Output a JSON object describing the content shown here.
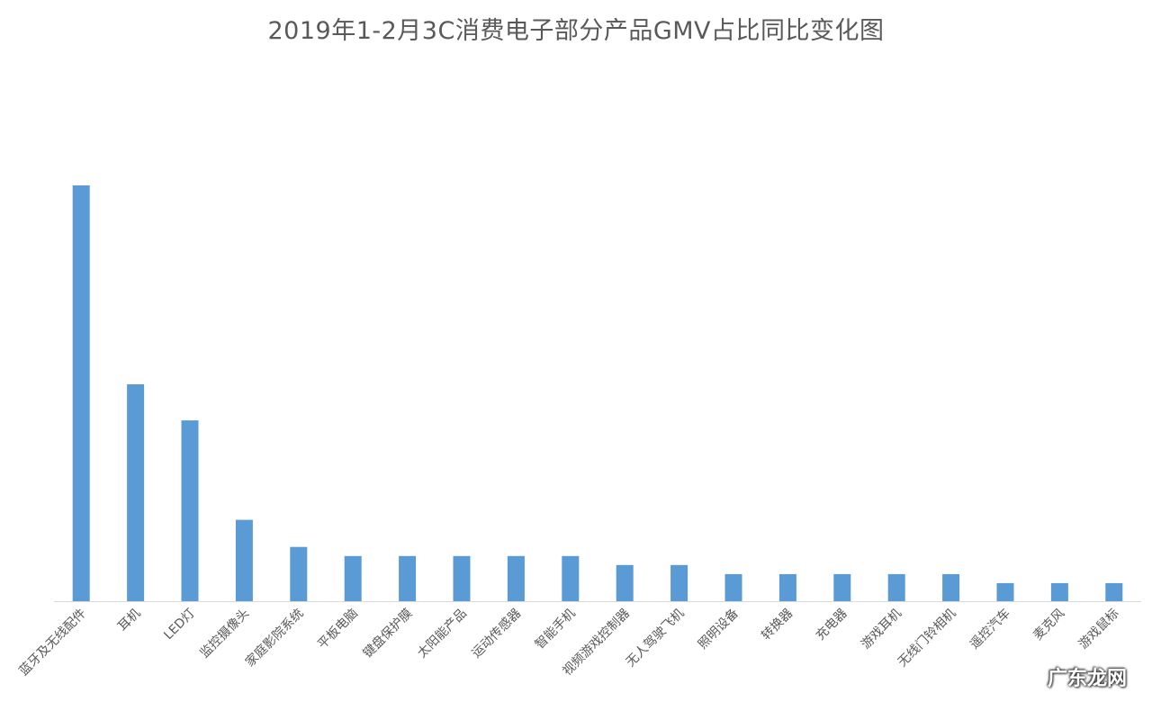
{
  "chart_data": {
    "type": "bar",
    "title": "2019年1-2月3C消费电子部分产品GMV占比同比变化图",
    "xlabel": "",
    "ylabel": "",
    "ylim": [
      0,
      46
    ],
    "grid": false,
    "legend": "none",
    "bar_color": "#5b9bd5",
    "categories": [
      "蓝牙及无线配件",
      "耳机",
      "LED灯",
      "监控摄像头",
      "家庭影院系统",
      "平板电脑",
      "键盘保护膜",
      "太阳能产品",
      "运动传感器",
      "智能手机",
      "视频游戏控制器",
      "无人驾驶飞机",
      "照明设备",
      "转换器",
      "充电器",
      "游戏耳机",
      "无线门铃相机",
      "遥控汽车",
      "麦克风",
      "游戏鼠标"
    ],
    "values": [
      46,
      24,
      20,
      9,
      6,
      5,
      5,
      5,
      5,
      5,
      4,
      4,
      3,
      3,
      3,
      3,
      3,
      2,
      2,
      2
    ]
  },
  "watermark": "广东龙网"
}
